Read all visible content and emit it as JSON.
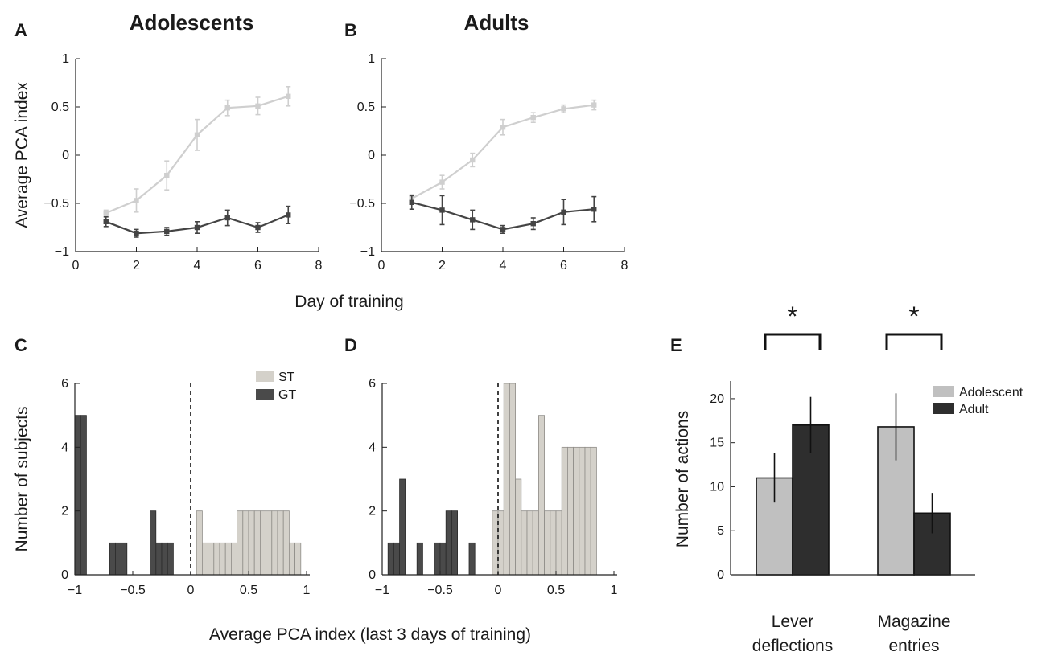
{
  "colors": {
    "adolescent_bar": "#c0c0c0",
    "adult_bar": "#2e2e2e",
    "st": "#d4d1ca",
    "gt": "#4a4a4a",
    "line_st": "#cfcfcf",
    "line_gt": "#444444"
  },
  "labels": {
    "shared_x_top": "Day of training",
    "shared_x_bottom": "Average PCA index (last 3 days of training)"
  },
  "chart_data": [
    {
      "id": "A",
      "letter": "A",
      "type": "line",
      "title": "Adolescents",
      "ylabel": "Average PCA index",
      "xlabel": "Day of training",
      "xlim": [
        0,
        8
      ],
      "ylim": [
        -1,
        1
      ],
      "xticks": [
        "0",
        "2",
        "4",
        "6",
        "8"
      ],
      "yticks": [
        "−1",
        "−0.5",
        "0",
        "0.5",
        "1"
      ],
      "x": [
        1,
        2,
        3,
        4,
        5,
        6,
        7
      ],
      "series": [
        {
          "name": "ST",
          "values": [
            -0.6,
            -0.47,
            -0.21,
            0.21,
            0.49,
            0.51,
            0.61
          ],
          "errors": [
            0.03,
            0.12,
            0.15,
            0.16,
            0.08,
            0.09,
            0.1
          ]
        },
        {
          "name": "GT",
          "values": [
            -0.69,
            -0.81,
            -0.79,
            -0.75,
            -0.65,
            -0.75,
            -0.62
          ],
          "errors": [
            0.05,
            0.04,
            0.04,
            0.06,
            0.08,
            0.05,
            0.09
          ]
        }
      ]
    },
    {
      "id": "B",
      "letter": "B",
      "type": "line",
      "title": "Adults",
      "ylabel": "",
      "xlabel": "Day of training",
      "xlim": [
        0,
        8
      ],
      "ylim": [
        -1,
        1
      ],
      "xticks": [
        "0",
        "2",
        "4",
        "6",
        "8"
      ],
      "yticks": [
        "−1",
        "−0.5",
        "0",
        "0.5",
        "1"
      ],
      "x": [
        1,
        2,
        3,
        4,
        5,
        6,
        7
      ],
      "series": [
        {
          "name": "ST",
          "values": [
            -0.45,
            -0.28,
            -0.05,
            0.29,
            0.39,
            0.48,
            0.52
          ],
          "errors": [
            0.04,
            0.07,
            0.07,
            0.08,
            0.05,
            0.04,
            0.05
          ]
        },
        {
          "name": "GT",
          "values": [
            -0.49,
            -0.57,
            -0.67,
            -0.77,
            -0.71,
            -0.59,
            -0.56
          ],
          "errors": [
            0.07,
            0.15,
            0.1,
            0.04,
            0.06,
            0.13,
            0.13
          ]
        }
      ]
    },
    {
      "id": "C",
      "letter": "C",
      "type": "bar",
      "subtype": "histogram",
      "title": "",
      "ylabel": "Number of subjects",
      "xlabel": "Average PCA index (last 3 days of training)",
      "xlim": [
        -1,
        1
      ],
      "ylim": [
        0,
        6
      ],
      "xticks": [
        "−1",
        "−0.5",
        "0",
        "0.5",
        "1"
      ],
      "yticks": [
        "0",
        "2",
        "4",
        "6"
      ],
      "bin_width": 0.05,
      "threshold": 0,
      "legend": [
        {
          "name": "ST"
        },
        {
          "name": "GT"
        }
      ],
      "series": [
        {
          "name": "GT",
          "bins": [
            [
              -1.0,
              5
            ],
            [
              -0.95,
              5
            ],
            [
              -0.7,
              1
            ],
            [
              -0.65,
              1
            ],
            [
              -0.6,
              1
            ],
            [
              -0.35,
              2
            ],
            [
              -0.3,
              1
            ],
            [
              -0.25,
              1
            ],
            [
              -0.2,
              1
            ]
          ]
        },
        {
          "name": "ST",
          "bins": [
            [
              0.05,
              2
            ],
            [
              0.1,
              1
            ],
            [
              0.15,
              1
            ],
            [
              0.2,
              1
            ],
            [
              0.25,
              1
            ],
            [
              0.3,
              1
            ],
            [
              0.35,
              1
            ],
            [
              0.4,
              2
            ],
            [
              0.45,
              2
            ],
            [
              0.5,
              2
            ],
            [
              0.55,
              2
            ],
            [
              0.6,
              2
            ],
            [
              0.65,
              2
            ],
            [
              0.7,
              2
            ],
            [
              0.75,
              2
            ],
            [
              0.8,
              2
            ],
            [
              0.85,
              1
            ],
            [
              0.9,
              1
            ]
          ]
        }
      ]
    },
    {
      "id": "D",
      "letter": "D",
      "type": "bar",
      "subtype": "histogram",
      "title": "",
      "ylabel": "",
      "xlabel": "Average PCA index (last 3 days of training)",
      "xlim": [
        -1,
        1
      ],
      "ylim": [
        0,
        6
      ],
      "xticks": [
        "−1",
        "−0.5",
        "0",
        "0.5",
        "1"
      ],
      "yticks": [
        "0",
        "2",
        "4",
        "6"
      ],
      "bin_width": 0.05,
      "threshold": 0,
      "series": [
        {
          "name": "GT",
          "bins": [
            [
              -0.95,
              1
            ],
            [
              -0.9,
              1
            ],
            [
              -0.85,
              3
            ],
            [
              -0.7,
              1
            ],
            [
              -0.55,
              1
            ],
            [
              -0.5,
              1
            ],
            [
              -0.45,
              2
            ],
            [
              -0.4,
              2
            ],
            [
              -0.25,
              1
            ]
          ]
        },
        {
          "name": "ST",
          "bins": [
            [
              -0.05,
              2
            ],
            [
              0.0,
              2
            ],
            [
              0.05,
              6
            ],
            [
              0.1,
              6
            ],
            [
              0.15,
              3
            ],
            [
              0.2,
              2
            ],
            [
              0.25,
              2
            ],
            [
              0.3,
              2
            ],
            [
              0.35,
              5
            ],
            [
              0.4,
              2
            ],
            [
              0.45,
              2
            ],
            [
              0.5,
              2
            ],
            [
              0.55,
              4
            ],
            [
              0.6,
              4
            ],
            [
              0.65,
              4
            ],
            [
              0.7,
              4
            ],
            [
              0.75,
              4
            ],
            [
              0.8,
              4
            ]
          ]
        }
      ]
    },
    {
      "id": "E",
      "letter": "E",
      "type": "bar",
      "title": "",
      "ylabel": "Number of actions",
      "xlabel": "",
      "ylim": [
        0,
        22
      ],
      "yticks": [
        "0",
        "5",
        "10",
        "15",
        "20"
      ],
      "categories": [
        [
          "Lever",
          "deflections"
        ],
        [
          "Magazine",
          "entries"
        ]
      ],
      "series": [
        {
          "name": "Adolescent",
          "values": [
            11,
            16.8
          ],
          "errors": [
            2.8,
            3.8
          ]
        },
        {
          "name": "Adult",
          "values": [
            17,
            7
          ],
          "errors": [
            3.2,
            2.3
          ]
        }
      ],
      "significance": [
        "*",
        "*"
      ]
    }
  ]
}
